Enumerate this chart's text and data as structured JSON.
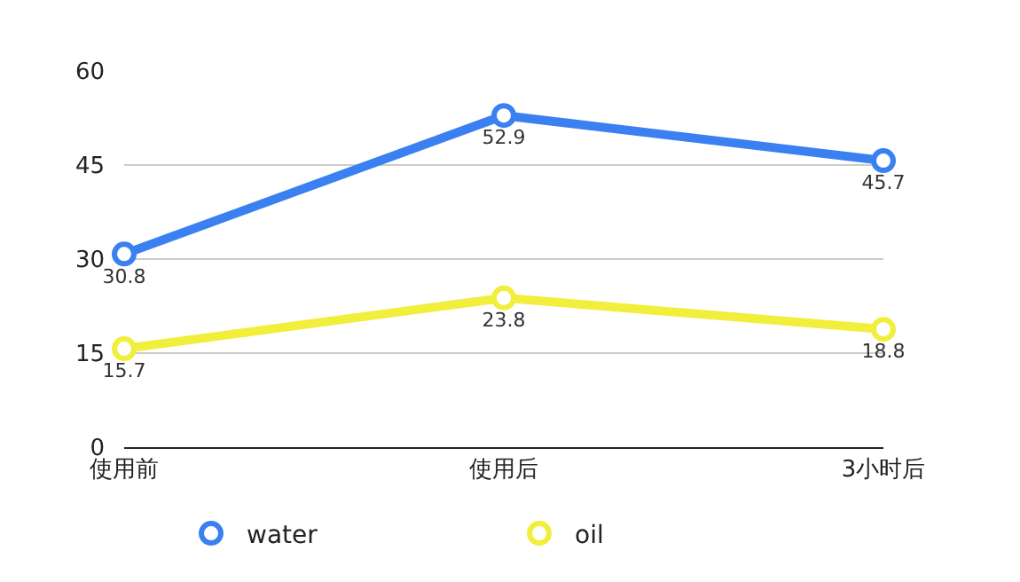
{
  "chart_data": {
    "type": "line",
    "categories": [
      "使用前",
      "使用后",
      "3小时后"
    ],
    "series": [
      {
        "name": "water",
        "color": "#3a80f0",
        "values": [
          30.8,
          52.9,
          45.7
        ]
      },
      {
        "name": "oil",
        "color": "#f2ee3c",
        "values": [
          15.7,
          23.8,
          18.8
        ]
      }
    ],
    "ylim": [
      0,
      60
    ],
    "yticks": [
      0,
      15,
      30,
      45,
      60
    ],
    "grid": "y",
    "legend": "bottom",
    "marker": "circle",
    "line_style": "solid",
    "data_labels": true
  }
}
